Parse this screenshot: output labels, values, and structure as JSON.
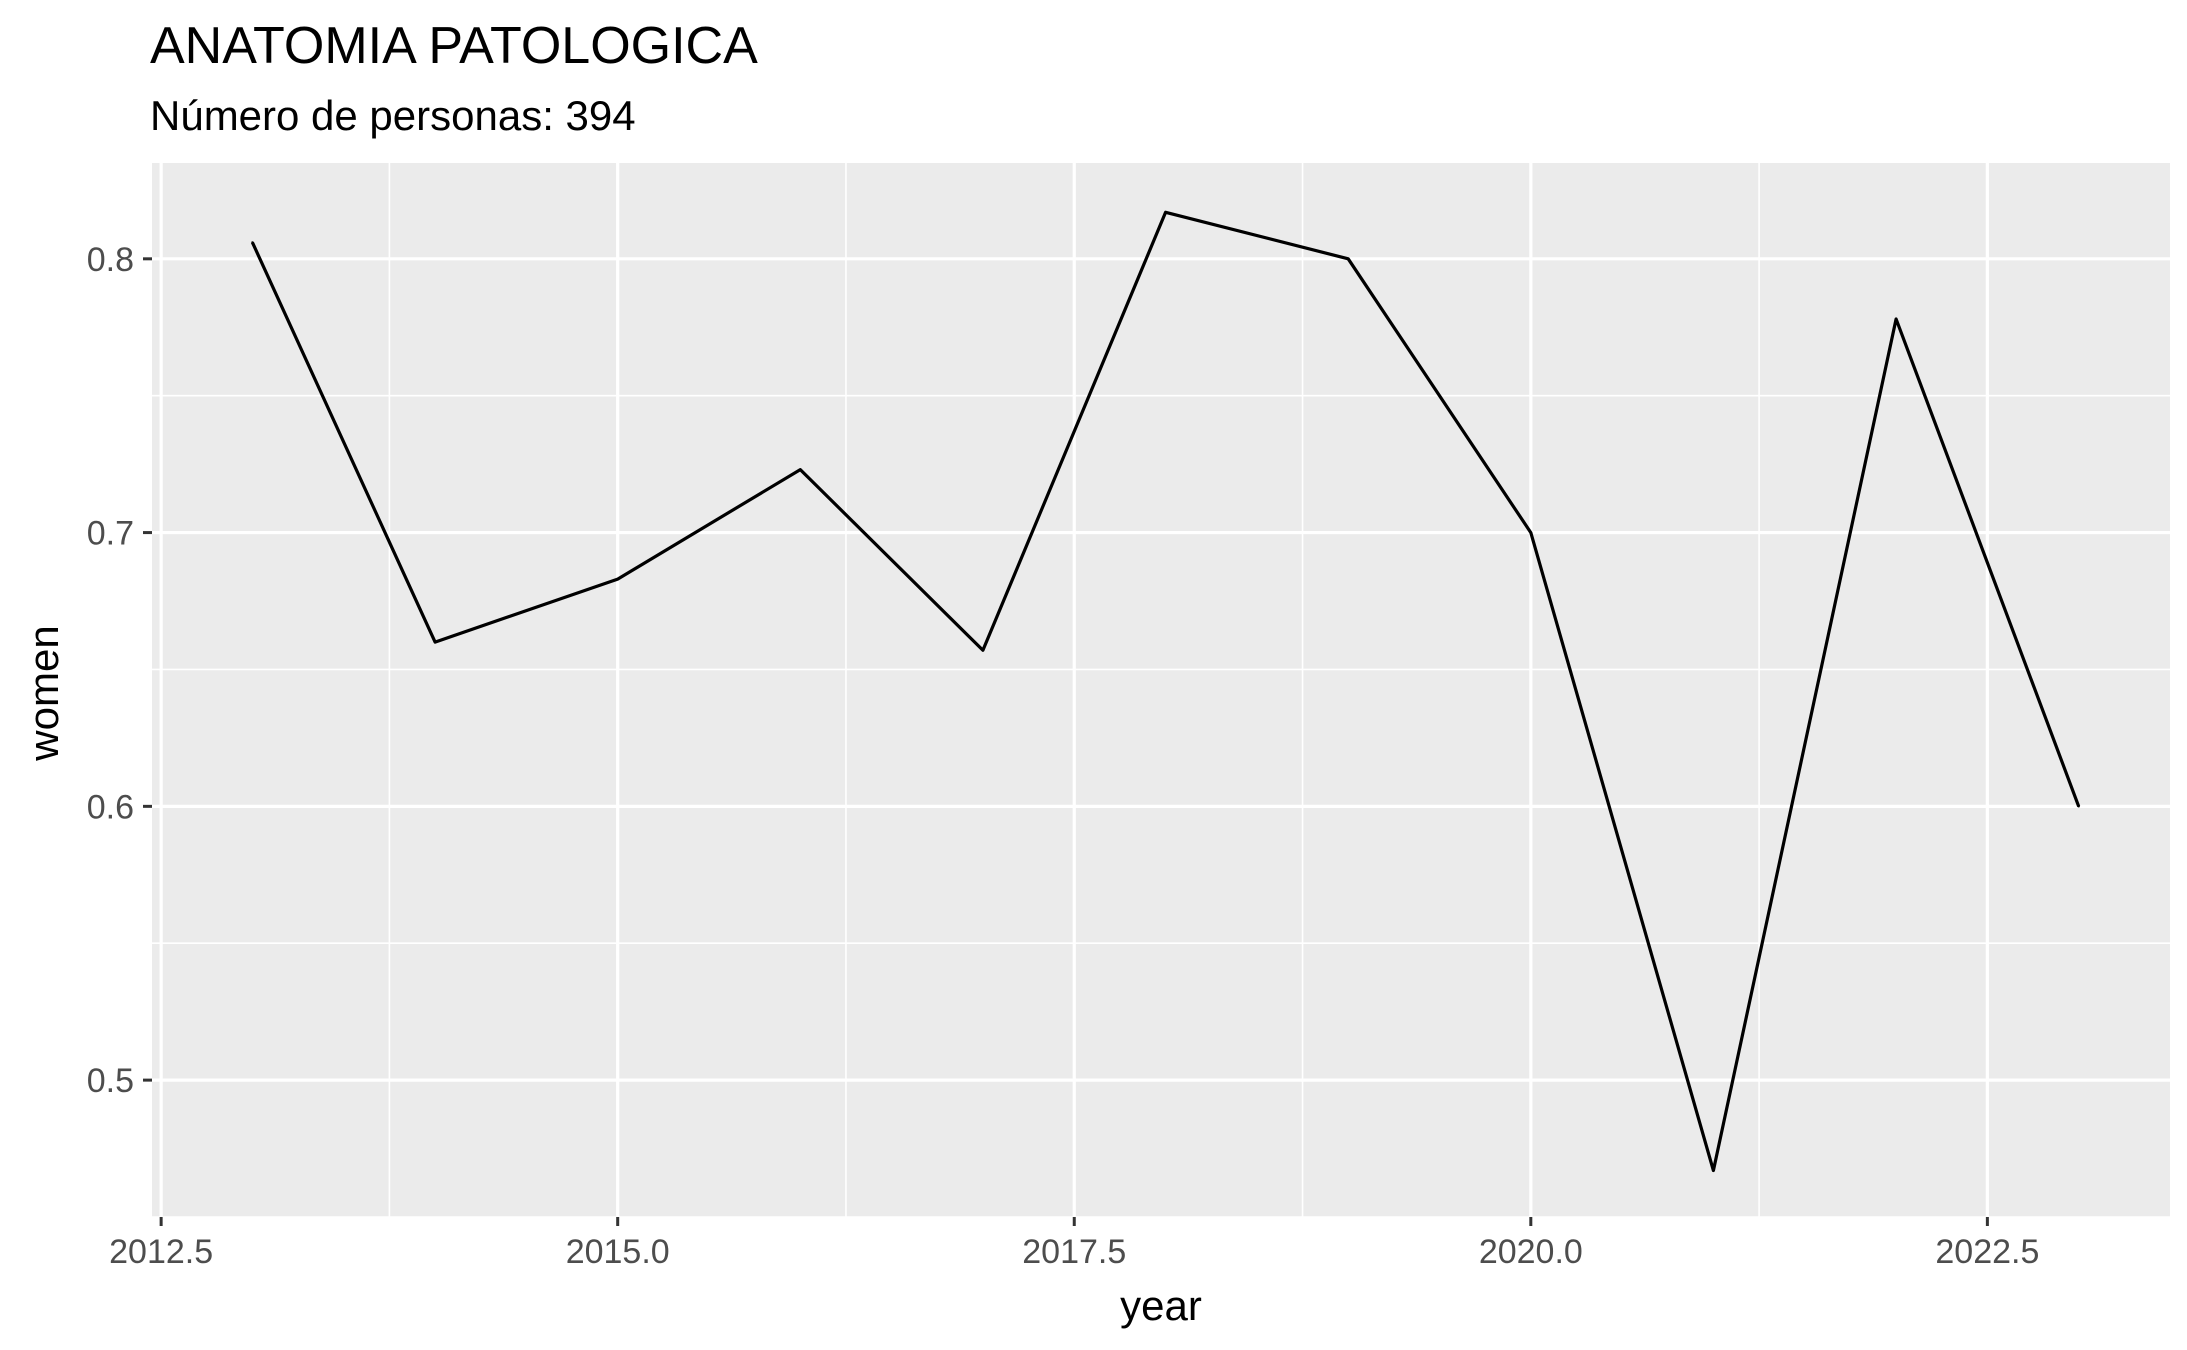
{
  "chart_data": {
    "type": "line",
    "title": "ANATOMIA PATOLOGICA",
    "subtitle": "Número de personas: 394",
    "xlabel": "year",
    "ylabel": "women",
    "xlim": [
      2012.45,
      2023.5
    ],
    "ylim": [
      0.45,
      0.835
    ],
    "x_ticks": [
      2012.5,
      2015.0,
      2017.5,
      2020.0,
      2022.5
    ],
    "x_tick_labels": [
      "2012.5",
      "2015.0",
      "2017.5",
      "2020.0",
      "2022.5"
    ],
    "y_ticks": [
      0.5,
      0.6,
      0.7,
      0.8
    ],
    "y_tick_labels": [
      "0.5",
      "0.6",
      "0.7",
      "0.8"
    ],
    "grid": true,
    "panel_color": "#ebebeb",
    "line_color": "#000000",
    "series": [
      {
        "x": [
          2013,
          2014,
          2015,
          2016,
          2017,
          2018,
          2019,
          2020,
          2021,
          2022,
          2023
        ],
        "values": [
          0.806,
          0.66,
          0.683,
          0.723,
          0.657,
          0.817,
          0.8,
          0.7,
          0.467,
          0.778,
          0.6
        ]
      }
    ]
  }
}
